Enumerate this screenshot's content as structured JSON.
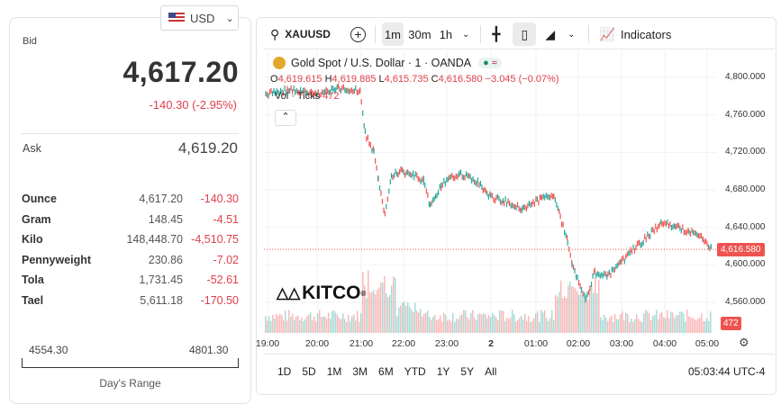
{
  "currency": {
    "label": "USD",
    "icon": "us-flag-icon"
  },
  "quote": {
    "bid_label": "Bid",
    "bid": "4,617.20",
    "change": "-140.30 (-2.95%)",
    "ask_label": "Ask",
    "ask": "4,619.20"
  },
  "units": [
    {
      "name": "Ounce",
      "value": "4,617.20",
      "change": "-140.30"
    },
    {
      "name": "Gram",
      "value": "148.45",
      "change": "-4.51"
    },
    {
      "name": "Kilo",
      "value": "148,448.70",
      "change": "-4,510.75"
    },
    {
      "name": "Pennyweight",
      "value": "230.86",
      "change": "-7.02"
    },
    {
      "name": "Tola",
      "value": "1,731.45",
      "change": "-52.61"
    },
    {
      "name": "Tael",
      "value": "5,611.18",
      "change": "-170.50"
    }
  ],
  "day_range": {
    "low": "4554.30",
    "high": "4801.30",
    "label": "Day's Range"
  },
  "toolbar": {
    "symbol": "XAUUSD",
    "intervals": [
      "1m",
      "30m",
      "1h"
    ],
    "active_interval": "1m",
    "indicators": "Indicators"
  },
  "legend": {
    "title": "Gold Spot / U.S. Dollar · 1 · OANDA",
    "o_label": "O",
    "o": "4,619.615",
    "h_label": "H",
    "h": "4,619.885",
    "l_label": "L",
    "l": "4,615.735",
    "c_label": "C",
    "c": "4,616.580",
    "chg": "−3.045 (−0.07%)",
    "vol_label": "Vol · Ticks",
    "vol": "472"
  },
  "watermark": "KITCO",
  "colors": {
    "up": "#26a69a",
    "down": "#ef5350",
    "accent_red": "#e0404a"
  },
  "chart_data": {
    "type": "line",
    "y_ticks": [
      "4,800.000",
      "4,760.000",
      "4,720.000",
      "4,680.000",
      "4,640.000",
      "4,600.000",
      "4,560.000"
    ],
    "y_tick_values": [
      4800,
      4760,
      4720,
      4680,
      4640,
      4600,
      4560
    ],
    "x_ticks": [
      "19:00",
      "20:00",
      "21:00",
      "22:00",
      "23:00",
      "2",
      "01:00",
      "02:00",
      "03:00",
      "04:00",
      "05:00"
    ],
    "last_price": "4,616.580",
    "last_volume": "472",
    "series": [
      [
        "18:52",
        4782
      ],
      [
        "19:23",
        4787
      ],
      [
        "20:00",
        4782
      ],
      [
        "20:31",
        4788
      ],
      [
        "21:01",
        4786
      ],
      [
        "21:08",
        4740
      ],
      [
        "21:20",
        4720
      ],
      [
        "21:26",
        4691
      ],
      [
        "21:35",
        4652
      ],
      [
        "21:44",
        4695
      ],
      [
        "21:57",
        4700
      ],
      [
        "22:15",
        4695
      ],
      [
        "22:28",
        4690
      ],
      [
        "22:37",
        4662
      ],
      [
        "22:52",
        4685
      ],
      [
        "23:17",
        4698
      ],
      [
        "23:42",
        4688
      ],
      [
        "00:00",
        4672
      ],
      [
        "00:18",
        4668
      ],
      [
        "00:43",
        4660
      ],
      [
        "01:08",
        4670
      ],
      [
        "01:26",
        4676
      ],
      [
        "01:35",
        4650
      ],
      [
        "01:45",
        4625
      ],
      [
        "01:51",
        4601
      ],
      [
        "02:10",
        4563
      ],
      [
        "02:22",
        4592
      ],
      [
        "02:40",
        4588
      ],
      [
        "02:59",
        4603
      ],
      [
        "03:11",
        4614
      ],
      [
        "03:23",
        4622
      ],
      [
        "03:54",
        4645
      ],
      [
        "04:13",
        4640
      ],
      [
        "04:31",
        4636
      ],
      [
        "04:50",
        4628
      ],
      [
        "05:02",
        4616.58
      ]
    ]
  },
  "ranges": [
    "1D",
    "5D",
    "1M",
    "3M",
    "6M",
    "YTD",
    "1Y",
    "5Y",
    "All"
  ],
  "clock": "05:03:44 UTC-4"
}
